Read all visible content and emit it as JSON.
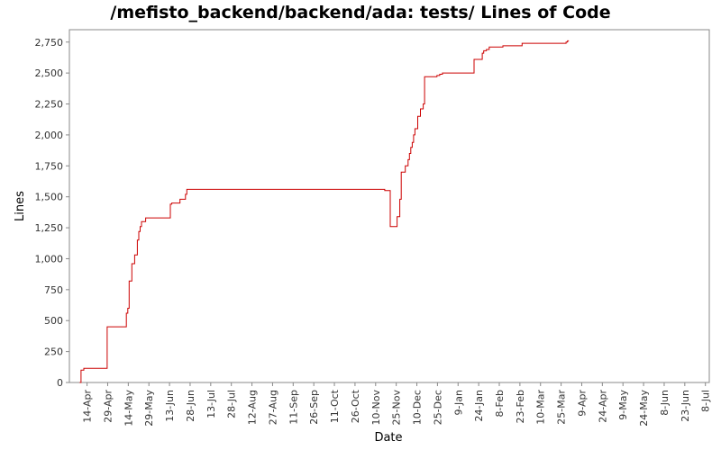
{
  "chart_data": {
    "type": "line",
    "title": "/mefisto_backend/backend/ada: tests/ Lines of Code",
    "xlabel": "Date",
    "ylabel": "Lines",
    "ylim": [
      0,
      2850
    ],
    "y_ticks": [
      0,
      250,
      500,
      750,
      1000,
      1250,
      1500,
      1750,
      2000,
      2250,
      2500,
      2750
    ],
    "y_tick_labels": [
      "0",
      "250",
      "500",
      "750",
      "1,000",
      "1,250",
      "1,500",
      "1,750",
      "2,000",
      "2,250",
      "2,500",
      "2,750"
    ],
    "x_tick_labels": [
      "14-Apr",
      "29-Apr",
      "14-May",
      "29-May",
      "13-Jun",
      "28-Jun",
      "13-Jul",
      "28-Jul",
      "12-Aug",
      "27-Aug",
      "11-Sep",
      "26-Sep",
      "11-Oct",
      "26-Oct",
      "10-Nov",
      "25-Nov",
      "10-Dec",
      "25-Dec",
      "9-Jan",
      "24-Jan",
      "8-Feb",
      "23-Feb",
      "10-Mar",
      "25-Mar",
      "9-Apr",
      "24-Apr",
      "9-May",
      "24-May",
      "8-Jun",
      "23-Jun",
      "8-Jul"
    ],
    "line_color": "#cc0000",
    "series": [
      {
        "step": true,
        "x": [
          0,
          1,
          3,
          20,
          34,
          35,
          36,
          38,
          40,
          42,
          43,
          44,
          45,
          47,
          48,
          54,
          66,
          67,
          68,
          73,
          77,
          78,
          222,
          226,
          227,
          231,
          233,
          234,
          236,
          237,
          239,
          240,
          241,
          242,
          243,
          244,
          246,
          248,
          249,
          250,
          251,
          253,
          260,
          262,
          264,
          266,
          287,
          288,
          293,
          294,
          296,
          298,
          308,
          322,
          354,
          355
        ],
        "y": [
          0,
          100,
          115,
          450,
          560,
          600,
          820,
          960,
          1030,
          1150,
          1220,
          1260,
          1300,
          1300,
          1330,
          1330,
          1440,
          1450,
          1450,
          1480,
          1520,
          1560,
          1550,
          1260,
          1260,
          1340,
          1480,
          1700,
          1700,
          1750,
          1800,
          1850,
          1900,
          1940,
          2000,
          2050,
          2150,
          2210,
          2210,
          2250,
          2470,
          2470,
          2480,
          2490,
          2500,
          2500,
          2610,
          2610,
          2660,
          2680,
          2690,
          2710,
          2720,
          2740,
          2750,
          2760
        ]
      }
    ],
    "grid": false,
    "legend": "none"
  }
}
